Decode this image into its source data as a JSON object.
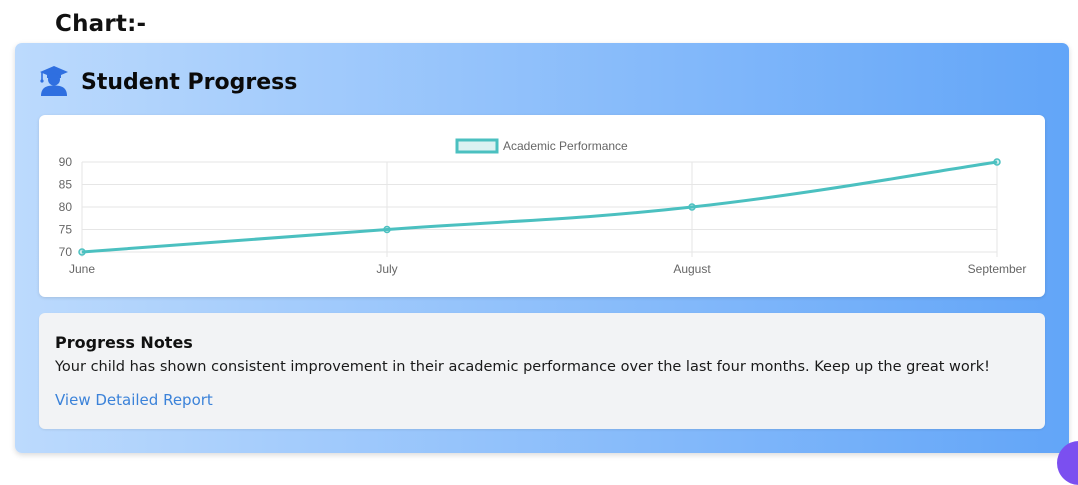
{
  "page": {
    "heading": "Chart:-"
  },
  "card": {
    "title": "Student Progress",
    "icon": "graduate-student-icon",
    "accent_color": "#2f6fe0"
  },
  "chart_data": {
    "type": "line",
    "categories": [
      "June",
      "July",
      "August",
      "September"
    ],
    "series": [
      {
        "name": "Academic Performance",
        "values": [
          70,
          75,
          80,
          90
        ],
        "color": "#4bc0c0"
      }
    ],
    "ylim": [
      70,
      90
    ],
    "yticks": [
      "90",
      "85",
      "80",
      "75",
      "70"
    ],
    "grid": true,
    "legend_position": "top-center"
  },
  "notes": {
    "title": "Progress Notes",
    "text": "Your child has shown consistent improvement in their academic performance over the last four months. Keep up the great work!",
    "link_label": "View Detailed Report",
    "link_color": "#3b82d9"
  }
}
